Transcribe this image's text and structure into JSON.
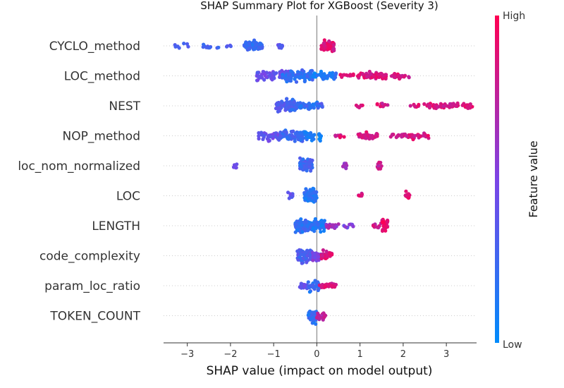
{
  "chart_data": {
    "type": "scatter",
    "subtype": "shap-beeswarm",
    "title": "SHAP Summary Plot for XGBoost (Severity 3)",
    "xlabel": "SHAP value (impact on model output)",
    "xlim": [
      -3.55,
      3.7
    ],
    "xticks": [
      -3,
      -2,
      -1,
      0,
      1,
      2,
      3
    ],
    "xtick_labels": [
      "−3",
      "−2",
      "−1",
      "0",
      "1",
      "2",
      "3"
    ],
    "colorbar": {
      "title": "Feature value",
      "high_label": "High",
      "low_label": "Low",
      "low_color": "#008bfb",
      "high_color": "#ff0052"
    },
    "features": [
      {
        "name": "CYCLO_method",
        "clusters": [
          [
            -3.3,
            -2.6,
            0.25,
            10,
            0.5
          ],
          [
            -2.6,
            -2.25,
            0.3,
            8,
            0.5
          ],
          [
            -2.1,
            -1.95,
            0.3,
            4,
            0.4
          ],
          [
            -1.7,
            -1.25,
            0.2,
            70,
            0.75
          ],
          [
            -0.9,
            -0.8,
            0.35,
            14,
            0.4
          ],
          [
            0.1,
            0.4,
            0.85,
            70,
            0.8
          ]
        ]
      },
      {
        "name": "LOC_method",
        "clusters": [
          [
            -1.4,
            -0.6,
            0.4,
            70,
            0.75
          ],
          [
            -0.8,
            -0.1,
            0.2,
            90,
            0.8
          ],
          [
            -0.1,
            0.0,
            0.1,
            8,
            0.4
          ],
          [
            0.0,
            0.45,
            0.15,
            40,
            0.6
          ],
          [
            0.5,
            1.0,
            0.85,
            16,
            0.3
          ],
          [
            1.0,
            1.6,
            0.85,
            50,
            0.55
          ],
          [
            1.6,
            2.2,
            0.85,
            24,
            0.4
          ]
        ]
      },
      {
        "name": "NEST",
        "clusters": [
          [
            -0.95,
            -0.55,
            0.35,
            50,
            0.8
          ],
          [
            -0.7,
            -0.5,
            0.25,
            60,
            0.85
          ],
          [
            -0.5,
            0.05,
            0.2,
            50,
            0.5
          ],
          [
            0.05,
            0.15,
            0.25,
            8,
            0.3
          ],
          [
            0.9,
            1.1,
            0.85,
            6,
            0.25
          ],
          [
            1.4,
            1.65,
            0.85,
            10,
            0.35
          ],
          [
            2.1,
            2.6,
            0.85,
            10,
            0.3
          ],
          [
            2.6,
            3.6,
            0.85,
            60,
            0.4
          ]
        ]
      },
      {
        "name": "NOP_method",
        "clusters": [
          [
            -1.35,
            -0.85,
            0.4,
            35,
            0.7
          ],
          [
            -0.85,
            -0.3,
            0.25,
            70,
            0.8
          ],
          [
            -0.3,
            -0.05,
            0.1,
            40,
            0.6
          ],
          [
            0.05,
            0.1,
            0.05,
            10,
            0.6
          ],
          [
            0.4,
            0.65,
            0.85,
            10,
            0.25
          ],
          [
            0.95,
            1.4,
            0.85,
            40,
            0.55
          ],
          [
            1.7,
            2.6,
            0.85,
            45,
            0.45
          ]
        ]
      },
      {
        "name": "loc_nom_normalized",
        "clusters": [
          [
            -1.95,
            -1.85,
            0.5,
            5,
            0.4
          ],
          [
            -0.4,
            -0.1,
            0.25,
            70,
            0.9
          ],
          [
            0.6,
            0.7,
            0.6,
            14,
            0.5
          ],
          [
            1.4,
            1.5,
            0.75,
            12,
            0.5
          ]
        ]
      },
      {
        "name": "LOC",
        "clusters": [
          [
            -0.7,
            -0.55,
            0.4,
            10,
            0.4
          ],
          [
            -0.3,
            0.0,
            0.15,
            80,
            0.9
          ],
          [
            0.95,
            1.05,
            0.85,
            6,
            0.3
          ],
          [
            2.05,
            2.15,
            0.9,
            12,
            0.5
          ]
        ]
      },
      {
        "name": "LENGTH",
        "clusters": [
          [
            -0.5,
            -0.15,
            0.2,
            90,
            0.85
          ],
          [
            -0.15,
            0.2,
            0.15,
            70,
            0.75
          ],
          [
            0.2,
            0.55,
            0.65,
            20,
            0.4
          ],
          [
            0.6,
            0.85,
            0.5,
            10,
            0.3
          ],
          [
            1.3,
            1.5,
            0.8,
            10,
            0.4
          ],
          [
            1.5,
            1.65,
            0.9,
            30,
            0.9
          ]
        ]
      },
      {
        "name": "code_complexity",
        "clusters": [
          [
            -0.45,
            -0.1,
            0.3,
            70,
            0.85
          ],
          [
            -0.1,
            0.1,
            0.5,
            30,
            0.7
          ],
          [
            0.1,
            0.35,
            0.85,
            30,
            0.6
          ]
        ]
      },
      {
        "name": "param_loc_ratio",
        "clusters": [
          [
            -0.4,
            -0.2,
            0.4,
            20,
            0.5
          ],
          [
            -0.2,
            0.05,
            0.2,
            30,
            0.7
          ],
          [
            0.05,
            0.45,
            0.85,
            25,
            0.4
          ]
        ]
      },
      {
        "name": "TOKEN_COUNT",
        "clusters": [
          [
            -0.2,
            0.0,
            0.2,
            50,
            0.9
          ],
          [
            0.0,
            0.2,
            0.75,
            20,
            0.5
          ]
        ]
      }
    ]
  }
}
